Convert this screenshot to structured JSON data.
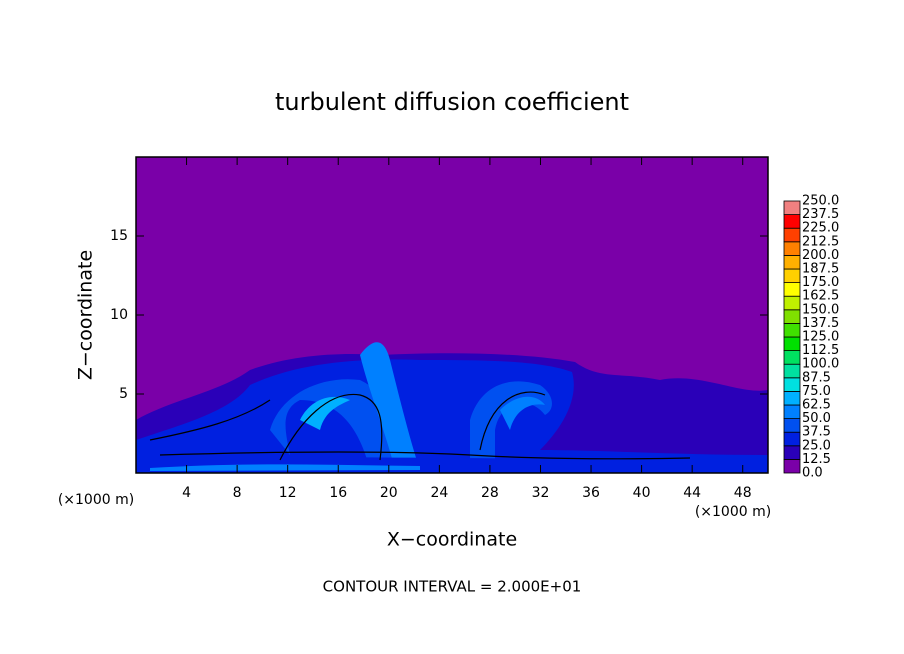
{
  "chart_data": {
    "type": "contour",
    "title": "turbulent diffusion coefficient",
    "x_label": "X−coordinate",
    "y_label": "Z−coordinate",
    "x_unit": "(×1000 m)",
    "y_unit": "(×1000 m)",
    "footer": "CONTOUR INTERVAL = 2.000E+01",
    "xlim": [
      0,
      50
    ],
    "xticks": [
      4,
      8,
      12,
      16,
      20,
      24,
      28,
      32,
      36,
      40,
      44,
      48
    ],
    "ylim": [
      0,
      20
    ],
    "yticks": [
      5,
      10,
      15
    ],
    "background_color": "#7a00a8",
    "colorbar": {
      "levels": [
        {
          "value": 0,
          "label": "0.0"
        },
        {
          "value": 12.5,
          "label": "12.5"
        },
        {
          "value": 25,
          "label": "25.0"
        },
        {
          "value": 37.5,
          "label": "37.5"
        },
        {
          "value": 50,
          "label": "50.0"
        },
        {
          "value": 62.5,
          "label": "62.5"
        },
        {
          "value": 75,
          "label": "75.0"
        },
        {
          "value": 87.5,
          "label": "87.5"
        },
        {
          "value": 100,
          "label": "100.0"
        },
        {
          "value": 112.5,
          "label": "112.5"
        },
        {
          "value": 125,
          "label": "125.0"
        },
        {
          "value": 137.5,
          "label": "137.5"
        },
        {
          "value": 150,
          "label": "150.0"
        },
        {
          "value": 162.5,
          "label": "162.5"
        },
        {
          "value": 175,
          "label": "175.0"
        },
        {
          "value": 187.5,
          "label": "187.5"
        },
        {
          "value": 200,
          "label": "200.0"
        },
        {
          "value": 212.5,
          "label": "212.5"
        },
        {
          "value": 225,
          "label": "225.0"
        },
        {
          "value": 237.5,
          "label": "237.5"
        },
        {
          "value": 250,
          "label": "250.0"
        }
      ],
      "colors": [
        "#7a00a8",
        "#2a00b8",
        "#0020e0",
        "#0050f0",
        "#0080ff",
        "#00b0ff",
        "#00e0e0",
        "#00e0a0",
        "#00e060",
        "#00e000",
        "#40e000",
        "#80e000",
        "#c0f000",
        "#ffff00",
        "#ffd000",
        "#ffb000",
        "#ff8000",
        "#ff4000",
        "#ff0000",
        "#f08080"
      ]
    }
  }
}
